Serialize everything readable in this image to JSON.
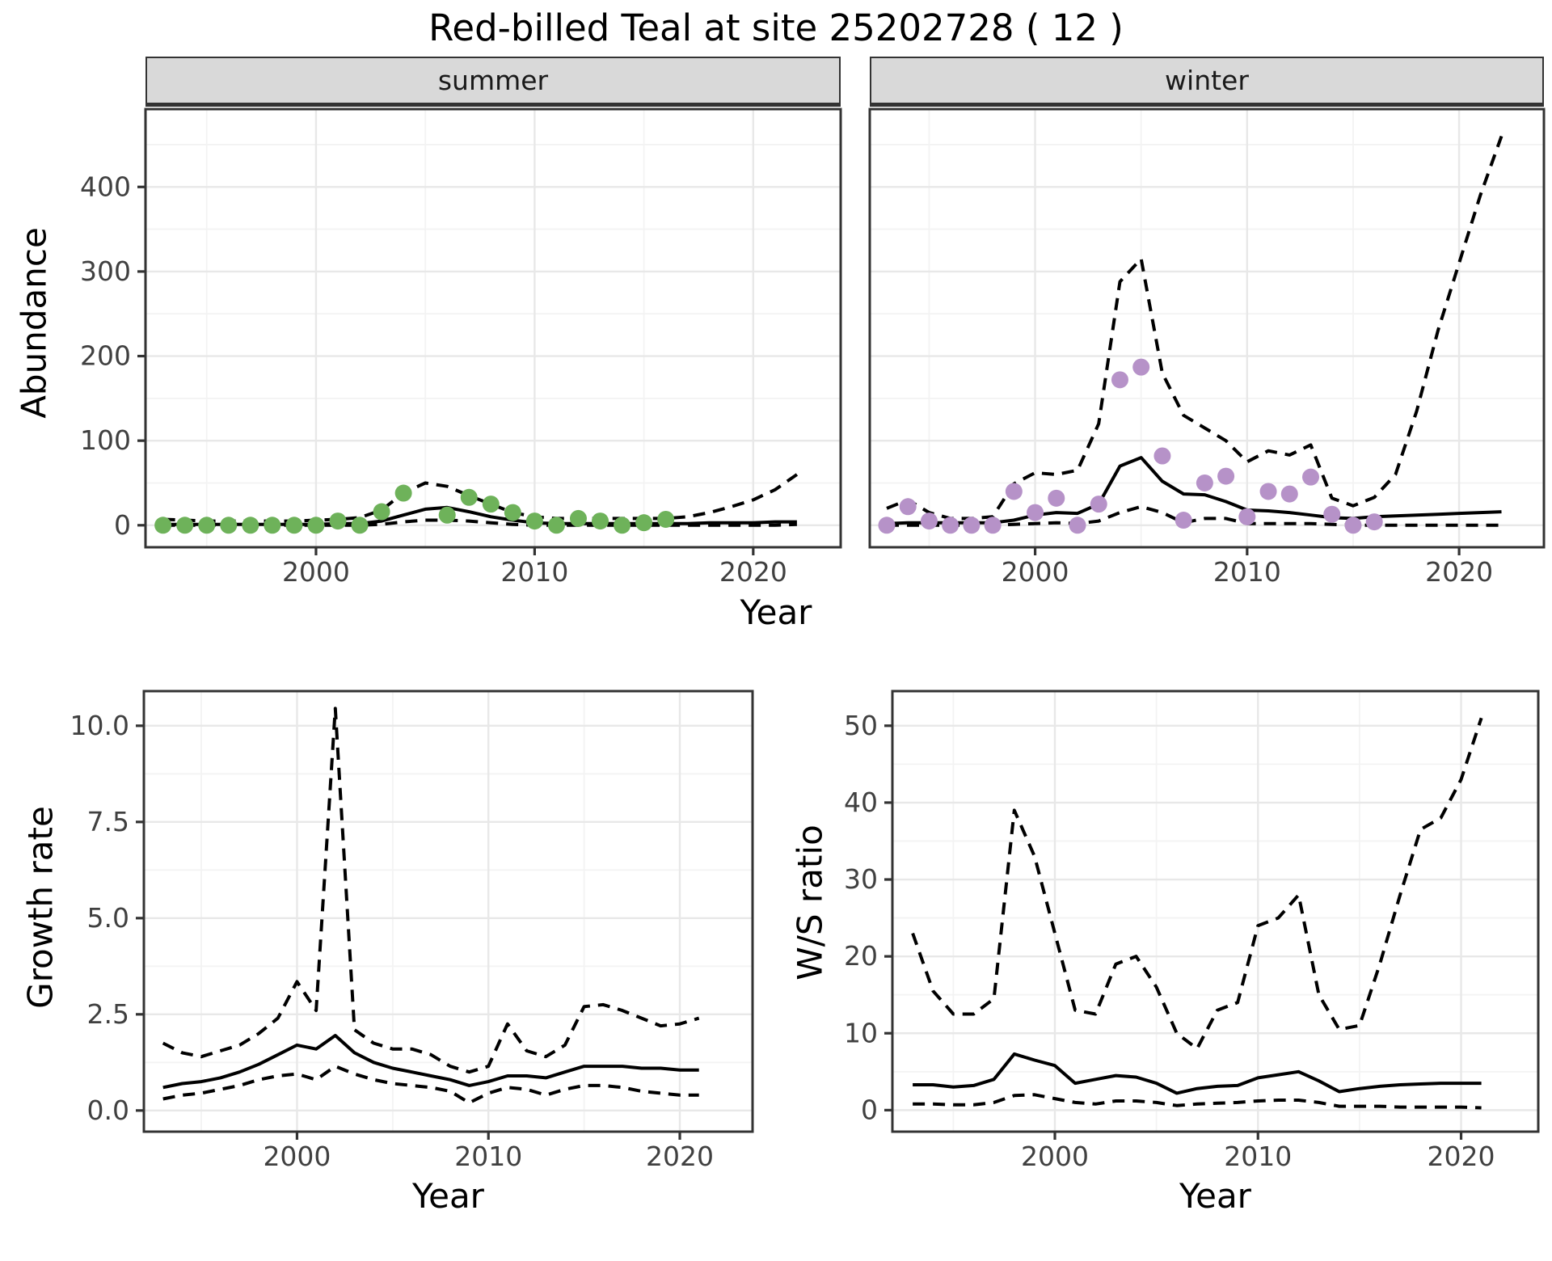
{
  "title": "Red-billed Teal at site 25202728 ( 12 )",
  "axes": {
    "y_abundance": "Abundance",
    "x_year": "Year",
    "y_growth": "Growth rate",
    "y_ws": "W/S ratio"
  },
  "facets": [
    {
      "label": "summer"
    },
    {
      "label": "winter"
    }
  ],
  "colors": {
    "summer_point": "#6EB25A",
    "winter_point": "#B692C8",
    "line": "#000000",
    "grid_major": "#e8e8e8",
    "grid_minor": "#f3f3f3",
    "panel_border": "#333333",
    "strip_bg": "#d9d9d9",
    "tick_text": "#404040"
  },
  "chart_data": [
    {
      "name": "abundance-summer",
      "type": "line",
      "facet": "summer",
      "xlim": [
        1992.2,
        2024.0
      ],
      "ylim": [
        -26,
        492
      ],
      "xticks": [
        2000,
        2010,
        2020
      ],
      "yticks": [
        0,
        100,
        200,
        300,
        400
      ],
      "ytick_labels": [
        "0",
        "100",
        "200",
        "300",
        "400"
      ],
      "minor_x": [
        1995,
        2005,
        2015
      ],
      "minor_y": [
        50,
        150,
        250,
        350,
        450
      ],
      "x_fit": [
        1993,
        1994,
        1995,
        1996,
        1997,
        1998,
        1999,
        2000,
        2001,
        2002,
        2003,
        2004,
        2005,
        2006,
        2007,
        2008,
        2009,
        2010,
        2011,
        2012,
        2013,
        2014,
        2015,
        2016,
        2017,
        2018,
        2019,
        2020,
        2021,
        2022
      ],
      "series": [
        {
          "name": "mean",
          "style": "solid",
          "values": [
            1,
            1,
            1,
            1,
            1,
            1,
            1,
            1,
            2,
            2,
            5,
            12,
            19,
            21,
            16,
            10,
            6,
            3,
            2,
            2,
            2,
            2,
            2,
            2,
            2,
            3,
            3,
            3,
            4,
            4
          ]
        },
        {
          "name": "upper_ci",
          "style": "dashed",
          "values": [
            7,
            6,
            5,
            5,
            5,
            5,
            5,
            6,
            7,
            9,
            18,
            38,
            50,
            46,
            35,
            25,
            15,
            10,
            8,
            8,
            8,
            8,
            8,
            8,
            10,
            15,
            22,
            30,
            42,
            60
          ]
        },
        {
          "name": "lower_ci",
          "style": "dashed",
          "values": [
            0,
            0,
            0,
            0,
            0,
            0,
            0,
            0,
            0,
            0,
            1,
            4,
            6,
            6,
            5,
            3,
            1,
            0,
            0,
            0,
            0,
            0,
            0,
            0,
            0,
            0,
            0,
            0,
            0,
            1
          ]
        }
      ],
      "points": {
        "name": "observed-counts",
        "color_key": "summer_point",
        "x": [
          1993,
          1994,
          1995,
          1996,
          1997,
          1998,
          1999,
          2000,
          2001,
          2002,
          2003,
          2004,
          2005,
          2006,
          2007,
          2008,
          2009,
          2010,
          2011,
          2012,
          2013,
          2014,
          2015,
          2016
        ],
        "values": [
          0,
          0,
          0,
          0,
          0,
          0,
          0,
          0,
          5,
          0,
          16,
          38,
          null,
          12,
          33,
          25,
          15,
          5,
          0,
          8,
          5,
          0,
          3,
          7
        ]
      }
    },
    {
      "name": "abundance-winter",
      "type": "line",
      "facet": "winter",
      "xlim": [
        1992.2,
        2024.0
      ],
      "ylim": [
        -26,
        492
      ],
      "xticks": [
        2000,
        2010,
        2020
      ],
      "yticks": [],
      "ytick_labels": [],
      "minor_x": [
        1995,
        2005,
        2015
      ],
      "minor_y": [
        50,
        150,
        250,
        350,
        450
      ],
      "y_grid": [
        0,
        100,
        200,
        300,
        400
      ],
      "x_fit": [
        1993,
        1994,
        1995,
        1996,
        1997,
        1998,
        1999,
        2000,
        2001,
        2002,
        2003,
        2004,
        2005,
        2006,
        2007,
        2008,
        2009,
        2010,
        2011,
        2012,
        2013,
        2014,
        2015,
        2016,
        2017,
        2018,
        2019,
        2020,
        2021,
        2022
      ],
      "series": [
        {
          "name": "mean",
          "style": "solid",
          "values": [
            2,
            3,
            3,
            3,
            3,
            3,
            6,
            12,
            15,
            14,
            25,
            70,
            80,
            52,
            37,
            36,
            28,
            18,
            17,
            15,
            12,
            9,
            8,
            10,
            11,
            12,
            13,
            14,
            15,
            16
          ]
        },
        {
          "name": "upper_ci",
          "style": "dashed",
          "values": [
            20,
            30,
            15,
            8,
            8,
            10,
            49,
            62,
            60,
            65,
            120,
            288,
            315,
            180,
            130,
            115,
            100,
            75,
            88,
            83,
            95,
            32,
            23,
            33,
            60,
            135,
            230,
            310,
            390,
            460
          ]
        },
        {
          "name": "lower_ci",
          "style": "dashed",
          "values": [
            0,
            0,
            0,
            0,
            0,
            0,
            1,
            2,
            3,
            2,
            5,
            15,
            22,
            15,
            3,
            8,
            8,
            2,
            2,
            2,
            2,
            1,
            0,
            0,
            0,
            0,
            0,
            0,
            0,
            0
          ]
        }
      ],
      "points": {
        "name": "observed-counts",
        "color_key": "winter_point",
        "x": [
          1993,
          1994,
          1995,
          1996,
          1997,
          1998,
          1999,
          2000,
          2001,
          2002,
          2003,
          2004,
          2005,
          2006,
          2007,
          2008,
          2009,
          2010,
          2011,
          2012,
          2013,
          2014,
          2015,
          2016
        ],
        "values": [
          0,
          22,
          5,
          0,
          0,
          0,
          40,
          15,
          32,
          0,
          25,
          172,
          187,
          82,
          6,
          50,
          58,
          10,
          40,
          37,
          57,
          13,
          0,
          4
        ]
      }
    },
    {
      "name": "growth-rate",
      "type": "line",
      "xlim": [
        1992.0,
        2023.8
      ],
      "ylim": [
        -0.55,
        10.9
      ],
      "xticks": [
        2000,
        2010,
        2020
      ],
      "yticks": [
        0.0,
        2.5,
        5.0,
        7.5,
        10.0
      ],
      "ytick_labels": [
        "0.0",
        "2.5",
        "5.0",
        "7.5",
        "10.0"
      ],
      "minor_x": [
        1995,
        2005,
        2015
      ],
      "minor_y": [
        1.25,
        3.75,
        6.25,
        8.75
      ],
      "x_fit": [
        1993,
        1994,
        1995,
        1996,
        1997,
        1998,
        1999,
        2000,
        2001,
        2002,
        2003,
        2004,
        2005,
        2006,
        2007,
        2008,
        2009,
        2010,
        2011,
        2012,
        2013,
        2014,
        2015,
        2016,
        2017,
        2018,
        2019,
        2020,
        2021
      ],
      "series": [
        {
          "name": "mean",
          "style": "solid",
          "values": [
            0.6,
            0.7,
            0.75,
            0.85,
            1.0,
            1.2,
            1.45,
            1.7,
            1.6,
            1.95,
            1.5,
            1.25,
            1.1,
            1.0,
            0.9,
            0.8,
            0.65,
            0.75,
            0.9,
            0.9,
            0.85,
            1.0,
            1.15,
            1.15,
            1.15,
            1.1,
            1.1,
            1.05,
            1.05
          ]
        },
        {
          "name": "upper_ci",
          "style": "dashed",
          "values": [
            1.75,
            1.5,
            1.4,
            1.55,
            1.7,
            2.0,
            2.4,
            3.35,
            2.6,
            10.45,
            2.1,
            1.75,
            1.6,
            1.6,
            1.45,
            1.15,
            1.0,
            1.15,
            2.25,
            1.55,
            1.4,
            1.7,
            2.7,
            2.75,
            2.6,
            2.4,
            2.2,
            2.25,
            2.4
          ]
        },
        {
          "name": "lower_ci",
          "style": "dashed",
          "values": [
            0.3,
            0.4,
            0.45,
            0.55,
            0.65,
            0.8,
            0.9,
            0.95,
            0.8,
            1.15,
            0.95,
            0.8,
            0.7,
            0.65,
            0.6,
            0.5,
            0.2,
            0.45,
            0.6,
            0.55,
            0.4,
            0.55,
            0.65,
            0.65,
            0.6,
            0.5,
            0.45,
            0.4,
            0.4
          ]
        }
      ],
      "points": null
    },
    {
      "name": "winter-summer-ratio",
      "type": "line",
      "xlim": [
        1992.0,
        2023.8
      ],
      "ylim": [
        -2.8,
        54.5
      ],
      "xticks": [
        2000,
        2010,
        2020
      ],
      "yticks": [
        0,
        10,
        20,
        30,
        40,
        50
      ],
      "ytick_labels": [
        "0",
        "10",
        "20",
        "30",
        "40",
        "50"
      ],
      "minor_x": [
        1995,
        2005,
        2015
      ],
      "minor_y": [
        5,
        15,
        25,
        35,
        45
      ],
      "x_fit": [
        1993,
        1994,
        1995,
        1996,
        1997,
        1998,
        1999,
        2000,
        2001,
        2002,
        2003,
        2004,
        2005,
        2006,
        2007,
        2008,
        2009,
        2010,
        2011,
        2012,
        2013,
        2014,
        2015,
        2016,
        2017,
        2018,
        2019,
        2020,
        2021
      ],
      "series": [
        {
          "name": "mean",
          "style": "solid",
          "values": [
            3.3,
            3.3,
            3.0,
            3.2,
            4.0,
            7.3,
            6.5,
            5.8,
            3.5,
            4.0,
            4.5,
            4.3,
            3.5,
            2.2,
            2.8,
            3.1,
            3.2,
            4.2,
            4.6,
            5.0,
            3.8,
            2.4,
            2.8,
            3.1,
            3.3,
            3.4,
            3.5,
            3.5,
            3.5
          ]
        },
        {
          "name": "upper_ci",
          "style": "dashed",
          "values": [
            23,
            15.5,
            12.5,
            12.5,
            14.5,
            39,
            33,
            23,
            13,
            12.5,
            19,
            20,
            16,
            10,
            8,
            13,
            14,
            24,
            25,
            28,
            15,
            10.5,
            11,
            19,
            28,
            36.5,
            38,
            43,
            51
          ]
        },
        {
          "name": "lower_ci",
          "style": "dashed",
          "values": [
            0.8,
            0.8,
            0.7,
            0.7,
            1.0,
            1.9,
            2.0,
            1.5,
            1.0,
            0.8,
            1.2,
            1.2,
            1.0,
            0.6,
            0.8,
            0.9,
            1.0,
            1.2,
            1.3,
            1.3,
            1.0,
            0.5,
            0.5,
            0.5,
            0.4,
            0.4,
            0.4,
            0.4,
            0.3
          ]
        }
      ],
      "points": null
    }
  ]
}
